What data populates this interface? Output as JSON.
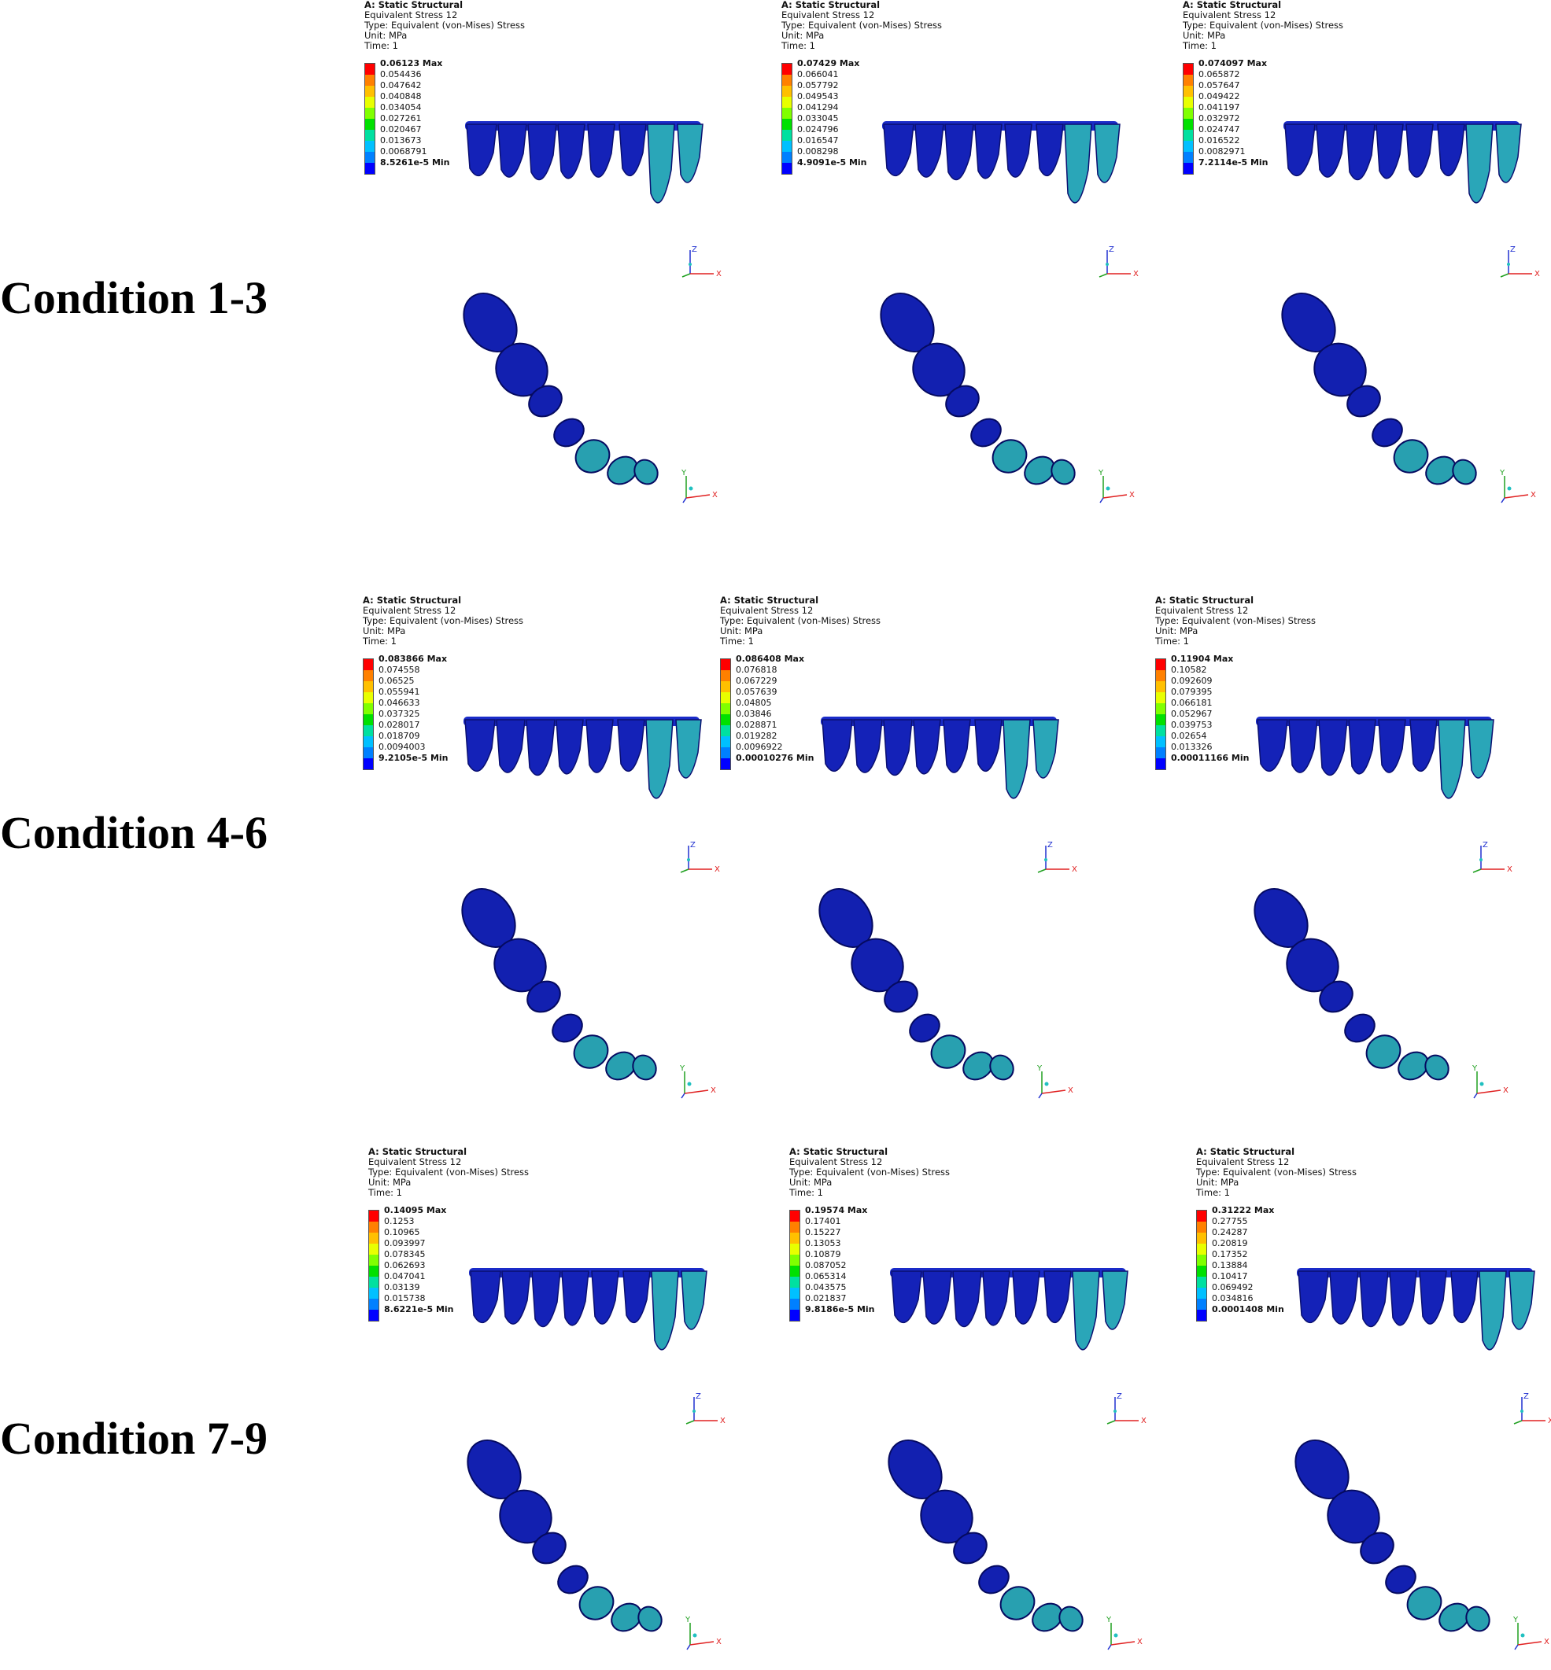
{
  "conditions": [
    {
      "label": "Condition 1-3"
    },
    {
      "label": "Condition 4-6"
    },
    {
      "label": "Condition 7-9"
    }
  ],
  "legend_colors": [
    "#ff0000",
    "#ff8000",
    "#ffc000",
    "#e8ff00",
    "#80ff00",
    "#00e000",
    "#00e0a0",
    "#00c0ff",
    "#0080ff",
    "#0000ff"
  ],
  "panels": [
    {
      "title": "A: Static Structural",
      "result": "Equivalent Stress 12",
      "type": "Type: Equivalent (von-Mises) Stress",
      "unit": "Unit: MPa",
      "time": "Time: 1",
      "max": "0.06123 Max",
      "levels": [
        "0.054436",
        "0.047642",
        "0.040848",
        "0.034054",
        "0.027261",
        "0.020467",
        "0.013673",
        "0.0068791"
      ],
      "min": "8.5261e-5 Min"
    },
    {
      "title": "A: Static Structural",
      "result": "Equivalent Stress 12",
      "type": "Type: Equivalent (von-Mises) Stress",
      "unit": "Unit: MPa",
      "time": "Time: 1",
      "max": "0.07429 Max",
      "levels": [
        "0.066041",
        "0.057792",
        "0.049543",
        "0.041294",
        "0.033045",
        "0.024796",
        "0.016547",
        "0.008298"
      ],
      "min": "4.9091e-5 Min"
    },
    {
      "title": "A: Static Structural",
      "result": "Equivalent Stress 12",
      "type": "Type: Equivalent (von-Mises) Stress",
      "unit": "Unit: MPa",
      "time": "Time: 1",
      "max": "0.074097 Max",
      "levels": [
        "0.065872",
        "0.057647",
        "0.049422",
        "0.041197",
        "0.032972",
        "0.024747",
        "0.016522",
        "0.0082971"
      ],
      "min": "7.2114e-5 Min"
    },
    {
      "title": "A: Static Structural",
      "result": "Equivalent Stress 12",
      "type": "Type: Equivalent (von-Mises) Stress",
      "unit": "Unit: MPa",
      "time": "Time: 1",
      "max": "0.083866 Max",
      "levels": [
        "0.074558",
        "0.06525",
        "0.055941",
        "0.046633",
        "0.037325",
        "0.028017",
        "0.018709",
        "0.0094003"
      ],
      "min": "9.2105e-5 Min"
    },
    {
      "title": "A: Static Structural",
      "result": "Equivalent Stress 12",
      "type": "Type: Equivalent (von-Mises) Stress",
      "unit": "Unit: MPa",
      "time": "Time: 1",
      "max": "0.086408 Max",
      "levels": [
        "0.076818",
        "0.067229",
        "0.057639",
        "0.04805",
        "0.03846",
        "0.028871",
        "0.019282",
        "0.0096922"
      ],
      "min": "0.00010276 Min"
    },
    {
      "title": "A: Static Structural",
      "result": "Equivalent Stress 12",
      "type": "Type: Equivalent (von-Mises) Stress",
      "unit": "Unit: MPa",
      "time": "Time: 1",
      "max": "0.11904 Max",
      "levels": [
        "0.10582",
        "0.092609",
        "0.079395",
        "0.066181",
        "0.052967",
        "0.039753",
        "0.02654",
        "0.013326"
      ],
      "min": "0.00011166 Min"
    },
    {
      "title": "A: Static Structural",
      "result": "Equivalent Stress 12",
      "type": "Type: Equivalent (von-Mises) Stress",
      "unit": "Unit: MPa",
      "time": "Time: 1",
      "max": "0.14095 Max",
      "levels": [
        "0.1253",
        "0.10965",
        "0.093997",
        "0.078345",
        "0.062693",
        "0.047041",
        "0.03139",
        "0.015738"
      ],
      "min": "8.6221e-5 Min"
    },
    {
      "title": "A: Static Structural",
      "result": "Equivalent Stress 12",
      "type": "Type: Equivalent (von-Mises) Stress",
      "unit": "Unit: MPa",
      "time": "Time: 1",
      "max": "0.19574 Max",
      "levels": [
        "0.17401",
        "0.15227",
        "0.13053",
        "0.10879",
        "0.087052",
        "0.065314",
        "0.043575",
        "0.021837"
      ],
      "min": "9.8186e-5 Min"
    },
    {
      "title": "A: Static Structural",
      "result": "Equivalent Stress 12",
      "type": "Type: Equivalent (von-Mises) Stress",
      "unit": "Unit: MPa",
      "time": "Time: 1",
      "max": "0.31222 Max",
      "levels": [
        "0.27755",
        "0.24287",
        "0.20819",
        "0.17352",
        "0.13884",
        "0.10417",
        "0.069492",
        "0.034816"
      ],
      "min": "0.0001408 Min"
    }
  ],
  "axes": {
    "front": {
      "up": "Z",
      "right": "X"
    },
    "top": {
      "up": "Y",
      "right": "X"
    }
  }
}
